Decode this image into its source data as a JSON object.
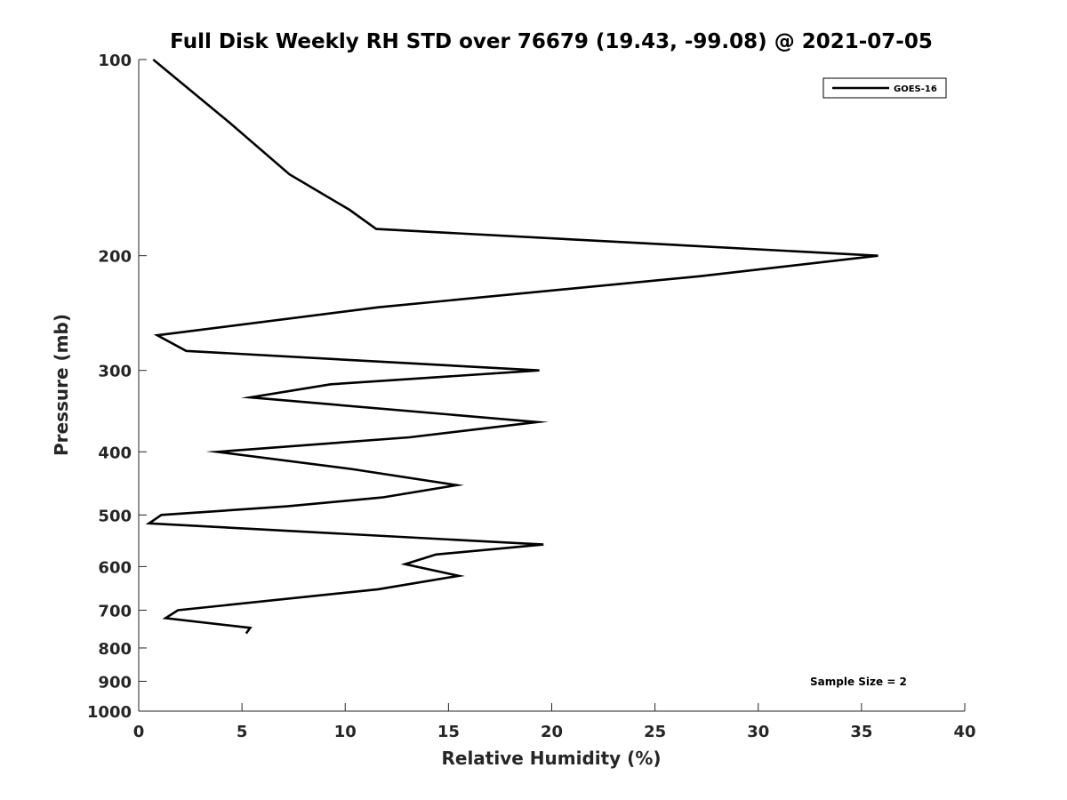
{
  "chart_data": {
    "type": "line",
    "title": "Full Disk Weekly RH STD over 76679 (19.43, -99.08) @ 2021-07-05",
    "xlabel": "Relative Humidity (%)",
    "ylabel": "Pressure (mb)",
    "xlim": [
      0,
      40
    ],
    "ylim": [
      100,
      1000
    ],
    "y_scale": "log",
    "y_reversed": true,
    "grid": false,
    "x_ticks": [
      0,
      5,
      10,
      15,
      20,
      25,
      30,
      35,
      40
    ],
    "y_ticks": [
      100,
      200,
      300,
      400,
      500,
      600,
      700,
      800,
      900,
      1000
    ],
    "legend_position": "top-right",
    "series": [
      {
        "name": "GOES-16",
        "color": "#000000",
        "x": [
          0.7,
          4.4,
          7.3,
          10.2,
          11.5,
          35.8,
          27.2,
          11.6,
          0.9,
          2.3,
          19.4,
          9.3,
          5.4,
          19.3,
          13.1,
          3.8,
          10.3,
          15.4,
          11.8,
          7.2,
          1.1,
          0.5,
          19.6,
          14.4,
          12.9,
          15.5,
          11.6,
          1.9,
          1.3,
          5.4,
          5.2
        ],
        "pressure": [
          100,
          125,
          150,
          170,
          182,
          200,
          215,
          240,
          265,
          280,
          300,
          315,
          330,
          360,
          380,
          400,
          425,
          450,
          470,
          485,
          500,
          515,
          555,
          575,
          595,
          620,
          650,
          700,
          720,
          745,
          760
        ]
      }
    ],
    "annotations": [
      "Sample Size = 2"
    ]
  }
}
